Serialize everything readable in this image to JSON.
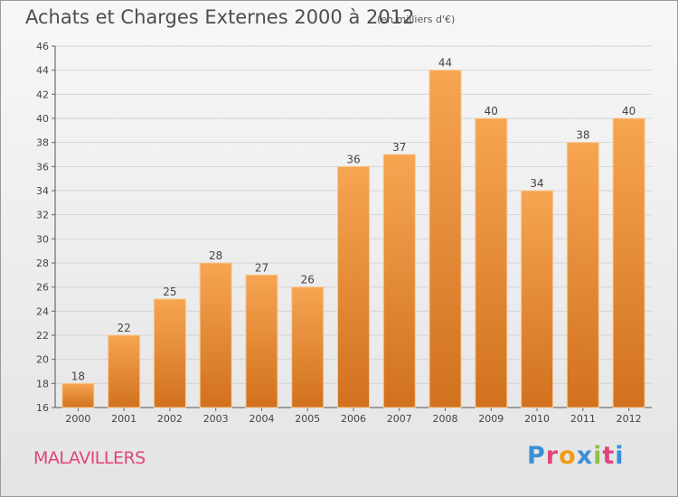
{
  "header": {
    "title": "Achats et Charges Externes 2000 à 2012",
    "unit": "(en milliers d'€)"
  },
  "footer": {
    "commune": "MALAVILLERS",
    "logo_text": "Proxiti"
  },
  "colors": {
    "bar_top": "#f6a551",
    "bar_bottom": "#d1711f",
    "bar_edge": "#f9c88f",
    "commune": "#e0457b",
    "logo": [
      "#3a8fd6",
      "#e0457b",
      "#f39c12",
      "#3a8fd6",
      "#8bc34a",
      "#e0457b",
      "#3a8fd6"
    ]
  },
  "chart_data": {
    "type": "bar",
    "categories": [
      "2000",
      "2001",
      "2002",
      "2003",
      "2004",
      "2005",
      "2006",
      "2007",
      "2008",
      "2009",
      "2010",
      "2011",
      "2012"
    ],
    "values": [
      18,
      22,
      25,
      28,
      27,
      26,
      36,
      37,
      44,
      40,
      34,
      38,
      40
    ],
    "ylim": [
      16,
      46
    ],
    "yticks": [
      16,
      18,
      20,
      22,
      24,
      26,
      28,
      30,
      32,
      34,
      36,
      38,
      40,
      42,
      44,
      46
    ],
    "grid": true,
    "data_labels": true,
    "title": "Achats et Charges Externes 2000 à 2012",
    "xlabel": "",
    "ylabel": ""
  }
}
